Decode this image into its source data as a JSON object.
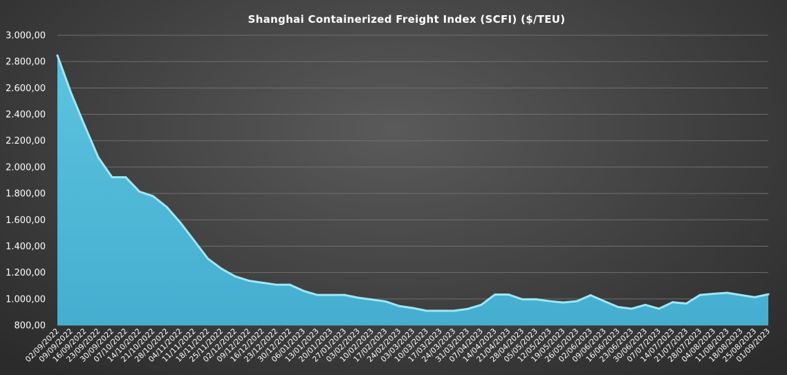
{
  "chart_data": {
    "type": "area",
    "title": "Shanghai  Containerized Freight Index  (SCFI) ($/TEU)",
    "xlabel": "",
    "ylabel": "",
    "ylim": [
      800,
      3000
    ],
    "y_ticks": [
      800,
      1000,
      1200,
      1400,
      1600,
      1800,
      2000,
      2200,
      2400,
      2600,
      2800,
      3000
    ],
    "y_tick_labels": [
      "800,00",
      "1.000,00",
      "1.200,00",
      "1.400,00",
      "1.600,00",
      "1.800,00",
      "2.000,00",
      "2.200,00",
      "2.400,00",
      "2.600,00",
      "2.800,00",
      "3.000,00"
    ],
    "grid": true,
    "legend": "none",
    "colors": {
      "fill": "#4fb8d6",
      "line": "#9ee8f5"
    },
    "categories": [
      "02/09/2022",
      "09/09/2022",
      "16/09/2022",
      "23/09/2022",
      "30/09/2022",
      "07/10/2022",
      "14/10/2022",
      "21/10/2022",
      "28/10/2022",
      "04/11/2022",
      "11/11/2022",
      "18/11/2022",
      "25/11/2022",
      "02/12/2022",
      "09/12/2022",
      "16/12/2022",
      "23/12/2022",
      "30/12/2022",
      "06/01/2023",
      "13/01/2023",
      "20/01/2023",
      "27/01/2023",
      "03/02/2023",
      "10/02/2023",
      "17/02/2023",
      "24/02/2023",
      "03/03/2023",
      "10/03/2023",
      "17/03/2023",
      "24/03/2023",
      "31/03/2023",
      "07/04/2023",
      "14/04/2023",
      "21/04/2023",
      "28/04/2023",
      "05/05/2023",
      "12/05/2023",
      "19/05/2023",
      "26/05/2023",
      "02/06/2023",
      "09/06/2023",
      "16/06/2023",
      "23/06/2023",
      "30/06/2023",
      "07/07/2023",
      "14/07/2023",
      "21/07/2023",
      "28/07/2023",
      "04/08/2023",
      "11/08/2023",
      "18/08/2023",
      "25/08/2023",
      "01/09/2023"
    ],
    "values": [
      2847,
      2562,
      2313,
      2072,
      1923,
      1923,
      1814,
      1779,
      1697,
      1578,
      1443,
      1306,
      1229,
      1171,
      1138,
      1123,
      1108,
      1108,
      1061,
      1030,
      1030,
      1030,
      1009,
      995,
      981,
      946,
      931,
      910,
      910,
      910,
      924,
      955,
      1033,
      1033,
      997,
      997,
      983,
      973,
      983,
      1028,
      983,
      939,
      926,
      955,
      926,
      975,
      965,
      1030,
      1039,
      1046,
      1029,
      1013,
      1035
    ]
  }
}
